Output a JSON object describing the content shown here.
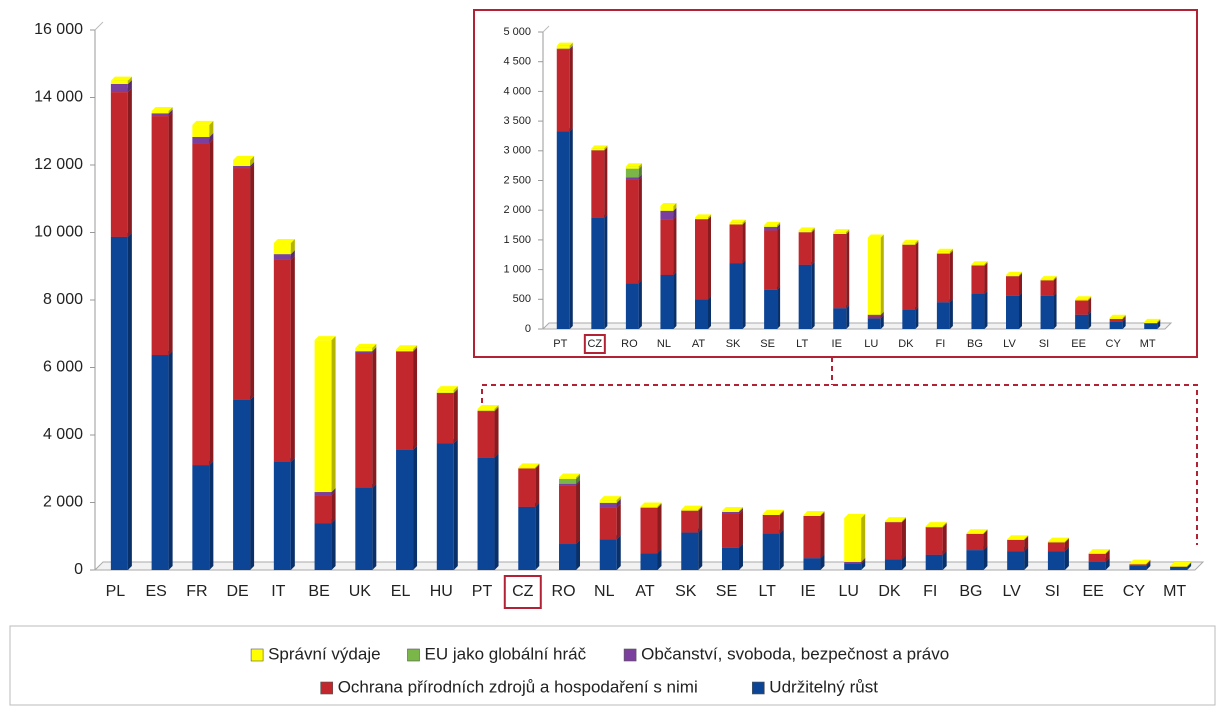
{
  "chart_data": {
    "type": "bar",
    "stacked": true,
    "categories": [
      "PL",
      "ES",
      "FR",
      "DE",
      "IT",
      "BE",
      "UK",
      "EL",
      "HU",
      "PT",
      "CZ",
      "RO",
      "NL",
      "AT",
      "SK",
      "SE",
      "LT",
      "IE",
      "LU",
      "DK",
      "FI",
      "BG",
      "LV",
      "SI",
      "EE",
      "CY",
      "MT"
    ],
    "series": [
      {
        "name": "Udržitelný růst",
        "color": "#0d4596",
        "values": [
          9870,
          6370,
          3110,
          5040,
          3200,
          1390,
          2430,
          3560,
          3760,
          3330,
          1870,
          770,
          910,
          500,
          1110,
          660,
          1080,
          350,
          180,
          320,
          450,
          590,
          560,
          560,
          240,
          120,
          90
        ]
      },
      {
        "name": "Ochrana přírodních zdrojů a hospodaření s nimi",
        "color": "#c1272d",
        "values": [
          4290,
          7080,
          9540,
          6870,
          5990,
          830,
          4000,
          2900,
          1470,
          1370,
          1140,
          1740,
          940,
          1350,
          650,
          1000,
          550,
          1250,
          30,
          1100,
          820,
          480,
          330,
          260,
          240,
          50,
          10
        ]
      },
      {
        "name": "Občanství, svoboda, bezpečnost a právo",
        "color": "#7b3f9e",
        "values": [
          240,
          80,
          180,
          60,
          170,
          90,
          50,
          20,
          20,
          20,
          0,
          40,
          140,
          0,
          0,
          60,
          0,
          0,
          30,
          0,
          0,
          0,
          0,
          0,
          0,
          0,
          0
        ]
      },
      {
        "name": "EU jako globální hráč",
        "color": "#7ab648",
        "values": [
          0,
          0,
          0,
          0,
          0,
          0,
          0,
          0,
          0,
          0,
          0,
          150,
          0,
          0,
          0,
          0,
          0,
          0,
          0,
          0,
          0,
          0,
          0,
          0,
          0,
          0,
          0
        ]
      },
      {
        "name": "Správní výdaje",
        "color": "#ffff00",
        "values": [
          100,
          70,
          360,
          180,
          330,
          4500,
          100,
          60,
          80,
          50,
          30,
          40,
          80,
          30,
          30,
          30,
          30,
          30,
          1300,
          30,
          30,
          20,
          20,
          20,
          20,
          20,
          20
        ]
      }
    ],
    "ylim": [
      0,
      16000
    ],
    "yticks": [
      0,
      {
        "value": 2000,
        "label": "2 000"
      },
      {
        "value": 4000,
        "label": "4 000"
      },
      {
        "value": 6000,
        "label": "6 000"
      },
      {
        "value": 8000,
        "label": "8 000"
      },
      {
        "value": 10000,
        "label": "10 000"
      },
      {
        "value": 12000,
        "label": "12 000"
      },
      {
        "value": 14000,
        "label": "14 000"
      },
      {
        "value": 16000,
        "label": "16 000"
      }
    ],
    "highlight": "CZ",
    "legend": "bottom",
    "inset": {
      "categories": [
        "PT",
        "CZ",
        "RO",
        "NL",
        "AT",
        "SK",
        "SE",
        "LT",
        "IE",
        "LU",
        "DK",
        "FI",
        "BG",
        "LV",
        "SI",
        "EE",
        "CY",
        "MT"
      ],
      "ylim": [
        0,
        5000
      ],
      "yticks": [
        0,
        500,
        {
          "value": 1000,
          "label": "1 000"
        },
        {
          "value": 1500,
          "label": "1 500"
        },
        {
          "value": 2000,
          "label": "2 000"
        },
        {
          "value": 2500,
          "label": "2 500"
        },
        {
          "value": 3000,
          "label": "3 000"
        },
        {
          "value": 3500,
          "label": "3 500"
        },
        {
          "value": 4000,
          "label": "4 000"
        },
        {
          "value": 4500,
          "label": "4 500"
        },
        {
          "value": 5000,
          "label": "5 000"
        }
      ]
    }
  }
}
